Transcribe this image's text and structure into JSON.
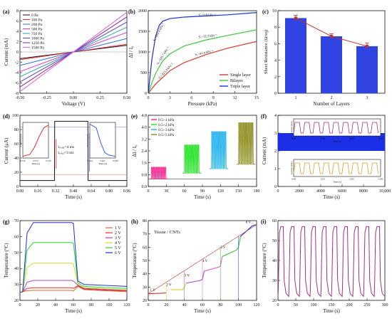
{
  "chart_data": [
    {
      "id": "a",
      "panel_label": "(a)",
      "type": "line",
      "xlabel": "Voltage (V)",
      "ylabel": "Current (mA)",
      "xlim": [
        -0.5,
        0.5
      ],
      "ylim": [
        -8,
        8
      ],
      "xticks": [
        "-0.50",
        "-0.25",
        "0.00",
        "0.25",
        "0.50"
      ],
      "yticks": [
        "-8",
        "-6",
        "-4",
        "-2",
        "0",
        "2",
        "4",
        "6",
        "8"
      ],
      "legend": "top-left",
      "series": [
        {
          "name": "0 Pa",
          "color": "#111111",
          "x": [
            -0.5,
            0.5
          ],
          "y": [
            -1.3,
            1.3
          ]
        },
        {
          "name": "100 Pa",
          "color": "#e8303a",
          "x": [
            -0.5,
            0.5
          ],
          "y": [
            -1.5,
            1.5
          ]
        },
        {
          "name": "200 Pa",
          "color": "#2f6fd8",
          "x": [
            -0.5,
            0.5
          ],
          "y": [
            -2.6,
            2.6
          ]
        },
        {
          "name": "500 Pa",
          "color": "#d23ad8",
          "x": [
            -0.5,
            0.5
          ],
          "y": [
            -3.8,
            3.8
          ]
        },
        {
          "name": "750 Pa",
          "color": "#26a6a6",
          "x": [
            -0.5,
            0.5
          ],
          "y": [
            -4.8,
            4.8
          ]
        },
        {
          "name": "1000 Pa",
          "color": "#5a3ec8",
          "x": [
            -0.5,
            0.5
          ],
          "y": [
            -5.8,
            5.8
          ]
        },
        {
          "name": "1250 Pa",
          "color": "#8a2a8a",
          "x": [
            -0.5,
            0.5
          ],
          "y": [
            -6.8,
            6.8
          ]
        },
        {
          "name": "1500 Pa",
          "color": "#e060e0",
          "x": [
            -0.5,
            0.5
          ],
          "y": [
            -7.7,
            7.7
          ]
        }
      ]
    },
    {
      "id": "b",
      "panel_label": "(b)",
      "type": "line",
      "xlabel": "Pressure (kPa)",
      "ylabel": "ΔI / I₀",
      "xlim": [
        0,
        15
      ],
      "ylim": [
        0,
        2200
      ],
      "xticks": [
        "0",
        "3",
        "6",
        "9",
        "12",
        "15"
      ],
      "yticks": [
        "0",
        "500",
        "1000",
        "1500",
        "2000"
      ],
      "legend": "bottom-right",
      "series": [
        {
          "name": "Single layer",
          "color": "#d93a2b",
          "x": [
            0,
            0.5,
            1,
            2,
            3,
            5,
            8,
            11,
            15
          ],
          "y": [
            0,
            120,
            240,
            420,
            600,
            820,
            1030,
            1200,
            1380
          ]
        },
        {
          "name": "Bilayer",
          "color": "#3ec63e",
          "x": [
            0,
            0.5,
            1,
            2,
            3,
            5,
            8,
            11,
            15
          ],
          "y": [
            0,
            280,
            520,
            860,
            1050,
            1260,
            1420,
            1540,
            1690
          ]
        },
        {
          "name": "Triple layer",
          "color": "#1a2fd8",
          "x": [
            0,
            0.5,
            1,
            1.5,
            2,
            3,
            5,
            8,
            11,
            15
          ],
          "y": [
            0,
            900,
            1500,
            1800,
            1920,
            1990,
            2030,
            2060,
            2090,
            2150
          ]
        }
      ],
      "annotations": [
        {
          "text": "S₁=693.4 kPa⁻¹",
          "x": 0.9,
          "y": 1380,
          "color": "#1a2fd8",
          "angle": -62
        },
        {
          "text": "S₂=9.8 kPa⁻¹",
          "x": 7.0,
          "y": 2060,
          "color": "#1a2fd8",
          "angle": 0
        },
        {
          "text": "S₁=505.7 kPa⁻¹",
          "x": 1.4,
          "y": 760,
          "color": "#3ec63e",
          "angle": -58
        },
        {
          "text": "S₂=35.3 kPa⁻¹",
          "x": 7.0,
          "y": 1470,
          "color": "#3ec63e",
          "angle": -6
        },
        {
          "text": "S₁=423.3 kPa⁻¹",
          "x": 1.6,
          "y": 380,
          "color": "#d93a2b",
          "angle": -48
        },
        {
          "text": "S₂=41.4 kPa⁻¹",
          "x": 6.5,
          "y": 1000,
          "color": "#d93a2b",
          "angle": -12
        }
      ]
    },
    {
      "id": "c",
      "panel_label": "(c)",
      "type": "bar",
      "xlabel": "Number of Layers",
      "ylabel": "Sheet Resistance (Ω/sq)",
      "categories": [
        "1",
        "2",
        "3"
      ],
      "values": [
        9.1,
        6.9,
        5.7
      ],
      "errors": [
        0.35,
        0.3,
        0.4
      ],
      "ylim": [
        0,
        10
      ],
      "yticks": [
        "0",
        "2",
        "4",
        "6",
        "8",
        "10"
      ],
      "bar_color": "#2f44e0",
      "trend_color": "#c0302b"
    },
    {
      "id": "d",
      "panel_label": "(d)",
      "type": "line",
      "xlabel": "Time (s)",
      "ylabel": "Current (μA)",
      "xlim": [
        0,
        0.96
      ],
      "ylim": [
        -10,
        110
      ],
      "xticks": [
        "0.00",
        "0.16",
        "0.32",
        "0.48",
        "0.64",
        "0.80",
        "0.96"
      ],
      "yticks": [
        "0",
        "20",
        "40",
        "60",
        "80",
        "100"
      ],
      "series": [
        {
          "name": "",
          "color": "#111111",
          "x": [
            0,
            0.31,
            0.312,
            0.61,
            0.612,
            0.96
          ],
          "y": [
            0,
            0,
            100,
            100,
            0,
            0
          ]
        }
      ],
      "hlines": [
        {
          "y": 90,
          "color": "#8a8ae6"
        },
        {
          "y": 10,
          "color": "#e68a8a"
        }
      ],
      "text_labels": [
        "τᵣₑₛₚ=4 ms",
        "τᵣₑₗₐₓ=3 ms"
      ],
      "inset_left": {
        "xticks": [
          "0.310",
          "0.313",
          "0.316"
        ],
        "xlabel": "Time (s)",
        "ylabel": "Current (μA)",
        "x": [
          0.31,
          0.3115,
          0.3125,
          0.3135,
          0.3145,
          0.3155
        ],
        "y": [
          5,
          10,
          30,
          60,
          85,
          92
        ],
        "color": "#e0302b"
      },
      "inset_right": {
        "xticks": [
          "0.624",
          "0.627",
          "0.630"
        ],
        "xlabel": "Time (s)",
        "ylabel": "Current (μA)",
        "x": [
          0.624,
          0.6255,
          0.6265,
          0.6275,
          0.6285,
          0.63
        ],
        "y": [
          95,
          85,
          45,
          15,
          8,
          5
        ],
        "color": "#2f5fe0"
      }
    },
    {
      "id": "e",
      "panel_label": "(e)",
      "type": "line",
      "xlabel": "Time (s)",
      "ylabel": "ΔI / I₀",
      "xlim": [
        0,
        180
      ],
      "ylim": [
        0,
        4.8
      ],
      "xticks": [
        "0",
        "30",
        "60",
        "90",
        "120",
        "150",
        "180"
      ],
      "yticks": [
        "0.0",
        "0.8",
        "1.6",
        "2.4",
        "3.2",
        "4.0",
        "4.8"
      ],
      "legend": "top-left",
      "series": [
        {
          "name": "0.5~1 kPa",
          "color": "#ff1f8a",
          "x_range": [
            5,
            30
          ],
          "low": 0.5,
          "high": 1.3
        },
        {
          "name": "0.5~2 kPa",
          "color": "#1ee01e",
          "x_range": [
            60,
            85
          ],
          "low": 0.9,
          "high": 2.8
        },
        {
          "name": "0.5~3 kPa",
          "color": "#1ab0f0",
          "x_range": [
            105,
            130
          ],
          "low": 1.2,
          "high": 3.7
        },
        {
          "name": "0.5~5 kPa",
          "color": "#8a8a1a",
          "x_range": [
            150,
            175
          ],
          "low": 1.5,
          "high": 4.3
        }
      ]
    },
    {
      "id": "f",
      "panel_label": "(f)",
      "type": "line",
      "xlabel": "Time (s)",
      "ylabel": "Current (mA)",
      "xlim": [
        0,
        10000
      ],
      "ylim": [
        0,
        4
      ],
      "xticks": [
        "0",
        "2000",
        "4000",
        "6000",
        "8000",
        "10,000"
      ],
      "yticks": [
        "0",
        "1",
        "2",
        "3",
        "4"
      ],
      "series": [
        {
          "name": "",
          "color": "#1a2fe6",
          "low": 2.0,
          "high": 3.0
        }
      ],
      "inset_top": {
        "xticks": [
          "8000",
          "8100",
          "8200",
          "8300"
        ],
        "xlabel": "Time (s)",
        "ylabel": "Current (mA)",
        "color": "#a0308a"
      },
      "inset_bottom": {
        "xticks": [
          "1000",
          "1100",
          "1200",
          "1300"
        ],
        "xlabel": "Time (s)",
        "ylabel": "Current (mA)",
        "color": "#d6a02b"
      }
    },
    {
      "id": "g",
      "panel_label": "(g)",
      "type": "line",
      "xlabel": "Time (s)",
      "ylabel": "Temperature (°C)",
      "xlim": [
        0,
        120
      ],
      "ylim": [
        15,
        75
      ],
      "xticks": [
        "0",
        "20",
        "40",
        "60",
        "80",
        "100",
        "120"
      ],
      "yticks": [
        "20",
        "30",
        "40",
        "50",
        "60",
        "70"
      ],
      "legend": "top-right",
      "series": [
        {
          "name": "1 V",
          "color": "#d96a2b",
          "plateau": 22.5,
          "end": 21.5
        },
        {
          "name": "2 V",
          "color": "#e0302b",
          "plateau": 24.5,
          "end": 22.0
        },
        {
          "name": "3 V",
          "color": "#b040c8",
          "plateau": 30.0,
          "end": 22.5
        },
        {
          "name": "4 V",
          "color": "#d8d82b",
          "plateau": 43.0,
          "end": 23.0
        },
        {
          "name": "5 V",
          "color": "#2bd82b",
          "plateau": 58.5,
          "end": 24.0
        },
        {
          "name": "6 V",
          "color": "#1a2fd8",
          "plateau": 73.5,
          "end": 25.5
        }
      ]
    },
    {
      "id": "h",
      "panel_label": "(h)",
      "type": "line",
      "title": "Tissue / CNTs",
      "xlabel": "Time (s)",
      "ylabel": "Temperature (°C)",
      "xlim": [
        0,
        120
      ],
      "ylim": [
        20,
        80
      ],
      "xticks": [
        "0",
        "20",
        "40",
        "60",
        "80",
        "100",
        "120"
      ],
      "yticks": [
        "20",
        "30",
        "40",
        "50",
        "60",
        "70",
        "80"
      ],
      "series": [
        {
          "name": "",
          "color": "#5a3ec8",
          "x": [
            0,
            20,
            25,
            38,
            40,
            42,
            58,
            60,
            62,
            78,
            80,
            82,
            98,
            100,
            102,
            112,
            115,
            120
          ],
          "y": [
            25,
            25.5,
            28,
            28,
            30,
            33,
            35,
            36,
            42,
            45,
            46,
            53,
            58,
            60,
            68,
            74,
            76,
            77
          ]
        }
      ],
      "step_labels": [
        {
          "text": "1 V",
          "x": 2,
          "y": 27,
          "color": "#d6a02b"
        },
        {
          "text": "2 V",
          "x": 20,
          "y": 31,
          "color": "#d6a02b"
        },
        {
          "text": "3 V",
          "x": 40,
          "y": 38,
          "color": "#b040c8"
        },
        {
          "text": "4 V",
          "x": 60,
          "y": 49,
          "color": "#d6d02b"
        },
        {
          "text": "5 V",
          "x": 80,
          "y": 59,
          "color": "#2bc82b"
        },
        {
          "text": "6 V",
          "x": 108,
          "y": 78,
          "color": "#1a2fd8"
        }
      ],
      "segment_colors": [
        "#e0302b",
        "#d6d02b",
        "#b040c8",
        "#e060c0",
        "#2bc82b",
        "#1a2fd8"
      ]
    },
    {
      "id": "i",
      "panel_label": "(i)",
      "type": "line",
      "xlabel": "Time (s)",
      "ylabel": "Temperature (°C)",
      "xlim": [
        0,
        300
      ],
      "ylim": [
        20,
        60
      ],
      "xticks": [
        "0",
        "50",
        "100",
        "150",
        "200",
        "250",
        "300"
      ],
      "yticks": [
        "20",
        "30",
        "40",
        "50",
        "60"
      ],
      "series": [
        {
          "name": "",
          "color": "#a0308a",
          "cycles": 10,
          "low": 22,
          "high": 57
        }
      ]
    }
  ]
}
